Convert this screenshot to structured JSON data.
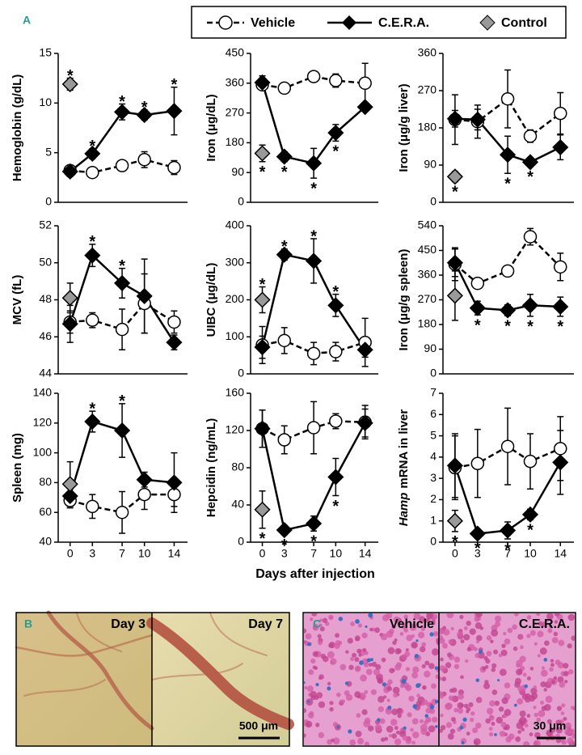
{
  "figure": {
    "label": "A",
    "xlabel": "Days after injection"
  },
  "chart_data": [
    {
      "type": "line",
      "ylabel": "Hemoglobin (g/dL)",
      "ylim": [
        0,
        15
      ],
      "yticks": [
        0,
        5,
        10,
        15
      ],
      "xlim": [
        -1.6,
        15.8
      ],
      "x": [
        0,
        3,
        7,
        10,
        14
      ],
      "series": [
        {
          "name": "Vehicle",
          "color": "#000000",
          "fill": "#ffffff",
          "marker": "circle",
          "linestyle": "dashed",
          "values": [
            3.2,
            3.0,
            3.7,
            4.3,
            3.5
          ],
          "errors": [
            0.4,
            0.4,
            0.5,
            0.8,
            0.7
          ],
          "markers": [
            null,
            null,
            null,
            null,
            null
          ]
        },
        {
          "name": "C.E.R.A.",
          "color": "#000000",
          "fill": "#000000",
          "marker": "diamond",
          "linestyle": "solid",
          "values": [
            3.1,
            4.9,
            9.1,
            8.8,
            9.2
          ],
          "errors": [
            0.5,
            0.5,
            0.8,
            0.5,
            2.4
          ],
          "markers": [
            null,
            "*",
            "*",
            "*",
            "*"
          ]
        },
        {
          "name": "Control",
          "color": "#000000",
          "fill": "#999999",
          "marker": "diamond",
          "linestyle": "none",
          "x": [
            0
          ],
          "values": [
            11.9
          ],
          "errors": [
            0.6
          ],
          "markers": [
            "*"
          ]
        }
      ]
    },
    {
      "type": "line",
      "ylabel": "Iron (μg/dL)",
      "ylim": [
        0,
        450
      ],
      "yticks": [
        0,
        90,
        180,
        270,
        360,
        450
      ],
      "xlim": [
        -1.6,
        15.8
      ],
      "x": [
        0,
        3,
        7,
        10,
        14
      ],
      "series": [
        {
          "name": "Vehicle",
          "color": "#000000",
          "fill": "#ffffff",
          "marker": "circle",
          "linestyle": "dashed",
          "values": [
            355,
            345,
            380,
            368,
            360
          ],
          "errors": [
            15,
            10,
            15,
            20,
            60
          ],
          "markers": [
            null,
            null,
            null,
            null,
            null
          ]
        },
        {
          "name": "C.E.R.A.",
          "color": "#000000",
          "fill": "#000000",
          "marker": "diamond",
          "linestyle": "solid",
          "values": [
            362,
            138,
            118,
            210,
            288
          ],
          "errors": [
            20,
            15,
            45,
            25,
            10
          ],
          "markers": [
            null,
            "*",
            "*",
            "*",
            null
          ]
        },
        {
          "name": "Control",
          "color": "#000000",
          "fill": "#999999",
          "marker": "diamond",
          "linestyle": "none",
          "x": [
            0
          ],
          "values": [
            148
          ],
          "errors": [
            25
          ],
          "markers": [
            "*"
          ]
        }
      ]
    },
    {
      "type": "line",
      "ylabel": "Iron (μg/g liver)",
      "ylim": [
        0,
        360
      ],
      "yticks": [
        0,
        90,
        180,
        270,
        360
      ],
      "xlim": [
        -1.6,
        15.8
      ],
      "x": [
        0,
        3,
        7,
        10,
        14
      ],
      "series": [
        {
          "name": "Vehicle",
          "color": "#000000",
          "fill": "#ffffff",
          "marker": "circle",
          "linestyle": "dashed",
          "values": [
            200,
            195,
            250,
            160,
            215
          ],
          "errors": [
            60,
            40,
            70,
            15,
            50
          ],
          "markers": [
            null,
            null,
            null,
            null,
            null
          ]
        },
        {
          "name": "C.E.R.A.",
          "color": "#000000",
          "fill": "#000000",
          "marker": "diamond",
          "linestyle": "solid",
          "values": [
            202,
            200,
            115,
            97,
            133
          ],
          "errors": [
            20,
            25,
            45,
            10,
            30
          ],
          "markers": [
            null,
            null,
            "*",
            "*",
            null
          ]
        },
        {
          "name": "Control",
          "color": "#000000",
          "fill": "#999999",
          "marker": "diamond",
          "linestyle": "none",
          "x": [
            0
          ],
          "values": [
            62
          ],
          "errors": [
            12
          ],
          "markers": [
            "*"
          ]
        }
      ]
    },
    {
      "type": "line",
      "ylabel": "MCV (fL)",
      "ylim": [
        44,
        52
      ],
      "yticks": [
        44,
        46,
        48,
        50,
        52
      ],
      "xlim": [
        -1.6,
        15.8
      ],
      "x": [
        0,
        3,
        7,
        10,
        14
      ],
      "series": [
        {
          "name": "Vehicle",
          "color": "#000000",
          "fill": "#ffffff",
          "marker": "circle",
          "linestyle": "dashed",
          "values": [
            46.8,
            46.9,
            46.4,
            47.8,
            46.8
          ],
          "errors": [
            0.6,
            0.4,
            1.1,
            1.6,
            0.6
          ],
          "markers": [
            null,
            null,
            null,
            null,
            null
          ]
        },
        {
          "name": "C.E.R.A.",
          "color": "#000000",
          "fill": "#000000",
          "marker": "diamond",
          "linestyle": "solid",
          "values": [
            46.7,
            50.4,
            48.9,
            48.2,
            45.7
          ],
          "errors": [
            1.0,
            0.6,
            0.8,
            2.0,
            0.4
          ],
          "markers": [
            null,
            "*",
            "*",
            null,
            null
          ]
        },
        {
          "name": "Control",
          "color": "#000000",
          "fill": "#999999",
          "marker": "diamond",
          "linestyle": "none",
          "x": [
            0
          ],
          "values": [
            48.1
          ],
          "errors": [
            0.8
          ],
          "markers": [
            null
          ]
        }
      ]
    },
    {
      "type": "line",
      "ylabel": "UIBC (μg/dL)",
      "ylim": [
        0,
        400
      ],
      "yticks": [
        0,
        100,
        200,
        300,
        400
      ],
      "xlim": [
        -1.6,
        15.8
      ],
      "x": [
        0,
        3,
        7,
        10,
        14
      ],
      "series": [
        {
          "name": "Vehicle",
          "color": "#000000",
          "fill": "#ffffff",
          "marker": "circle",
          "linestyle": "dashed",
          "values": [
            78,
            90,
            55,
            60,
            85
          ],
          "errors": [
            50,
            35,
            30,
            25,
            65
          ],
          "markers": [
            null,
            null,
            null,
            null,
            null
          ]
        },
        {
          "name": "C.E.R.A.",
          "color": "#000000",
          "fill": "#000000",
          "marker": "diamond",
          "linestyle": "solid",
          "values": [
            72,
            322,
            305,
            185,
            65
          ],
          "errors": [
            30,
            15,
            60,
            30,
            20
          ],
          "markers": [
            null,
            "*",
            "*",
            "*",
            null
          ]
        },
        {
          "name": "Control",
          "color": "#000000",
          "fill": "#999999",
          "marker": "diamond",
          "linestyle": "none",
          "x": [
            0
          ],
          "values": [
            200
          ],
          "errors": [
            35
          ],
          "markers": [
            "*"
          ]
        }
      ]
    },
    {
      "type": "line",
      "ylabel": "Iron (μg/g spleen)",
      "ylim": [
        0,
        540
      ],
      "yticks": [
        0,
        90,
        180,
        270,
        360,
        450,
        540
      ],
      "xlim": [
        -1.6,
        15.8
      ],
      "x": [
        0,
        3,
        7,
        10,
        14
      ],
      "series": [
        {
          "name": "Vehicle",
          "color": "#000000",
          "fill": "#ffffff",
          "marker": "circle",
          "linestyle": "dashed",
          "values": [
            400,
            330,
            375,
            500,
            390
          ],
          "errors": [
            60,
            15,
            10,
            30,
            50
          ],
          "markers": [
            null,
            null,
            null,
            null,
            null
          ]
        },
        {
          "name": "C.E.R.A.",
          "color": "#000000",
          "fill": "#000000",
          "marker": "diamond",
          "linestyle": "solid",
          "values": [
            405,
            240,
            232,
            250,
            245
          ],
          "errors": [
            50,
            25,
            20,
            40,
            35
          ],
          "markers": [
            null,
            "*",
            "*",
            "*",
            "*"
          ]
        },
        {
          "name": "Control",
          "color": "#000000",
          "fill": "#999999",
          "marker": "diamond",
          "linestyle": "none",
          "x": [
            0
          ],
          "values": [
            285
          ],
          "errors": [
            90
          ],
          "markers": [
            null
          ]
        }
      ]
    },
    {
      "type": "line",
      "ylabel": "Spleen (mg)",
      "ylim": [
        40,
        140
      ],
      "yticks": [
        40,
        60,
        80,
        100,
        120,
        140
      ],
      "xlim": [
        -1.6,
        15.8
      ],
      "x": [
        0,
        3,
        7,
        10,
        14
      ],
      "xticks": [
        0,
        3,
        7,
        10,
        14
      ],
      "series": [
        {
          "name": "Vehicle",
          "color": "#000000",
          "fill": "#ffffff",
          "marker": "circle",
          "linestyle": "dashed",
          "values": [
            68,
            64,
            60,
            72,
            72
          ],
          "errors": [
            5,
            8,
            14,
            10,
            8
          ],
          "markers": [
            null,
            null,
            null,
            null,
            null
          ]
        },
        {
          "name": "C.E.R.A.",
          "color": "#000000",
          "fill": "#000000",
          "marker": "diamond",
          "linestyle": "solid",
          "values": [
            71,
            121,
            115,
            82,
            80
          ],
          "errors": [
            5,
            7,
            18,
            5,
            20
          ],
          "markers": [
            null,
            "*",
            "*",
            null,
            null
          ]
        },
        {
          "name": "Control",
          "color": "#000000",
          "fill": "#999999",
          "marker": "diamond",
          "linestyle": "none",
          "x": [
            0
          ],
          "values": [
            79
          ],
          "errors": [
            15
          ],
          "markers": [
            null
          ]
        }
      ]
    },
    {
      "type": "line",
      "ylabel": "Hepcidin (ng/mL)",
      "ylim": [
        0,
        160
      ],
      "yticks": [
        0,
        40,
        80,
        120,
        160
      ],
      "xlim": [
        -1.6,
        15.8
      ],
      "x": [
        0,
        3,
        7,
        10,
        14
      ],
      "xticks": [
        0,
        3,
        7,
        10,
        14
      ],
      "series": [
        {
          "name": "Vehicle",
          "color": "#000000",
          "fill": "#ffffff",
          "marker": "circle",
          "linestyle": "dashed",
          "values": [
            122,
            110,
            123,
            130,
            129
          ],
          "errors": [
            20,
            15,
            28,
            8,
            18
          ],
          "markers": [
            null,
            null,
            null,
            null,
            null
          ]
        },
        {
          "name": "C.E.R.A.",
          "color": "#000000",
          "fill": "#000000",
          "marker": "diamond",
          "linestyle": "solid",
          "values": [
            122,
            13,
            20,
            70,
            128
          ],
          "errors": [
            20,
            5,
            8,
            20,
            15
          ],
          "markers": [
            null,
            "*",
            "*",
            "*",
            null
          ]
        },
        {
          "name": "Control",
          "color": "#000000",
          "fill": "#999999",
          "marker": "diamond",
          "linestyle": "none",
          "x": [
            0
          ],
          "values": [
            35
          ],
          "errors": [
            20
          ],
          "markers": [
            "*"
          ]
        }
      ]
    },
    {
      "type": "line",
      "ylabel_italic": "Hamp",
      "ylabel": "mRNA in liver",
      "ylim": [
        0,
        7
      ],
      "yticks": [
        0,
        1,
        2,
        3,
        4,
        5,
        6,
        7
      ],
      "xlim": [
        -1.6,
        15.8
      ],
      "x": [
        0,
        3,
        7,
        10,
        14
      ],
      "xticks": [
        0,
        3,
        7,
        10,
        14
      ],
      "series": [
        {
          "name": "Vehicle",
          "color": "#000000",
          "fill": "#ffffff",
          "marker": "circle",
          "linestyle": "dashed",
          "values": [
            3.5,
            3.7,
            4.5,
            3.8,
            4.4
          ],
          "errors": [
            1.5,
            1.6,
            1.8,
            1.3,
            1.5
          ],
          "markers": [
            null,
            null,
            null,
            null,
            null
          ]
        },
        {
          "name": "C.E.R.A.",
          "color": "#000000",
          "fill": "#000000",
          "marker": "diamond",
          "linestyle": "solid",
          "values": [
            3.6,
            0.4,
            0.55,
            1.3,
            3.75
          ],
          "errors": [
            1.5,
            0.2,
            0.4,
            0.25,
            1.5
          ],
          "markers": [
            null,
            "*",
            "*",
            "*",
            null
          ]
        },
        {
          "name": "Control",
          "color": "#000000",
          "fill": "#999999",
          "marker": "diamond",
          "linestyle": "none",
          "x": [
            0
          ],
          "values": [
            1.0
          ],
          "errors": [
            0.5
          ],
          "markers": [
            "*"
          ]
        }
      ]
    }
  ],
  "photos": {
    "B": {
      "label": "B",
      "panels": [
        {
          "label": "Day 3"
        },
        {
          "label": "Day 7",
          "scale": "500 μm"
        }
      ]
    },
    "C": {
      "label": "C",
      "panels": [
        {
          "label": "Vehicle"
        },
        {
          "label": "C.E.R.A.",
          "scale": "30 μm"
        }
      ]
    }
  }
}
